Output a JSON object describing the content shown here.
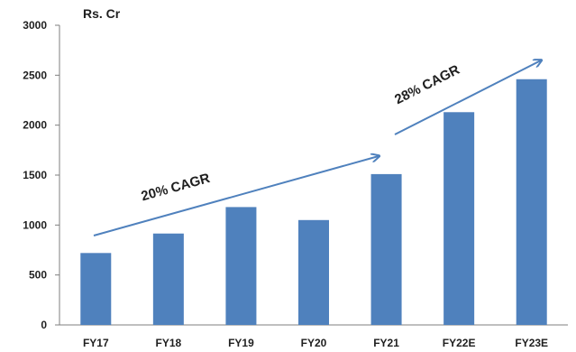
{
  "chart_data": {
    "type": "bar",
    "unit_label": "Rs. Cr",
    "categories": [
      "FY17",
      "FY18",
      "FY19",
      "FY20",
      "FY21",
      "FY22E",
      "FY23E"
    ],
    "values": [
      720,
      915,
      1180,
      1050,
      1510,
      2130,
      2460
    ],
    "ylim": [
      0,
      3000
    ],
    "yticks": [
      0,
      500,
      1000,
      1500,
      2000,
      2500,
      3000
    ],
    "grid": false,
    "bar_color": "#4f81bd",
    "arrow_color": "#4f81bd",
    "annotations": [
      {
        "text": "20% CAGR",
        "from_category": "FY17",
        "to_category": "FY21"
      },
      {
        "text": "28% CAGR",
        "from_category": "FY21",
        "to_category": "FY23E"
      }
    ]
  }
}
